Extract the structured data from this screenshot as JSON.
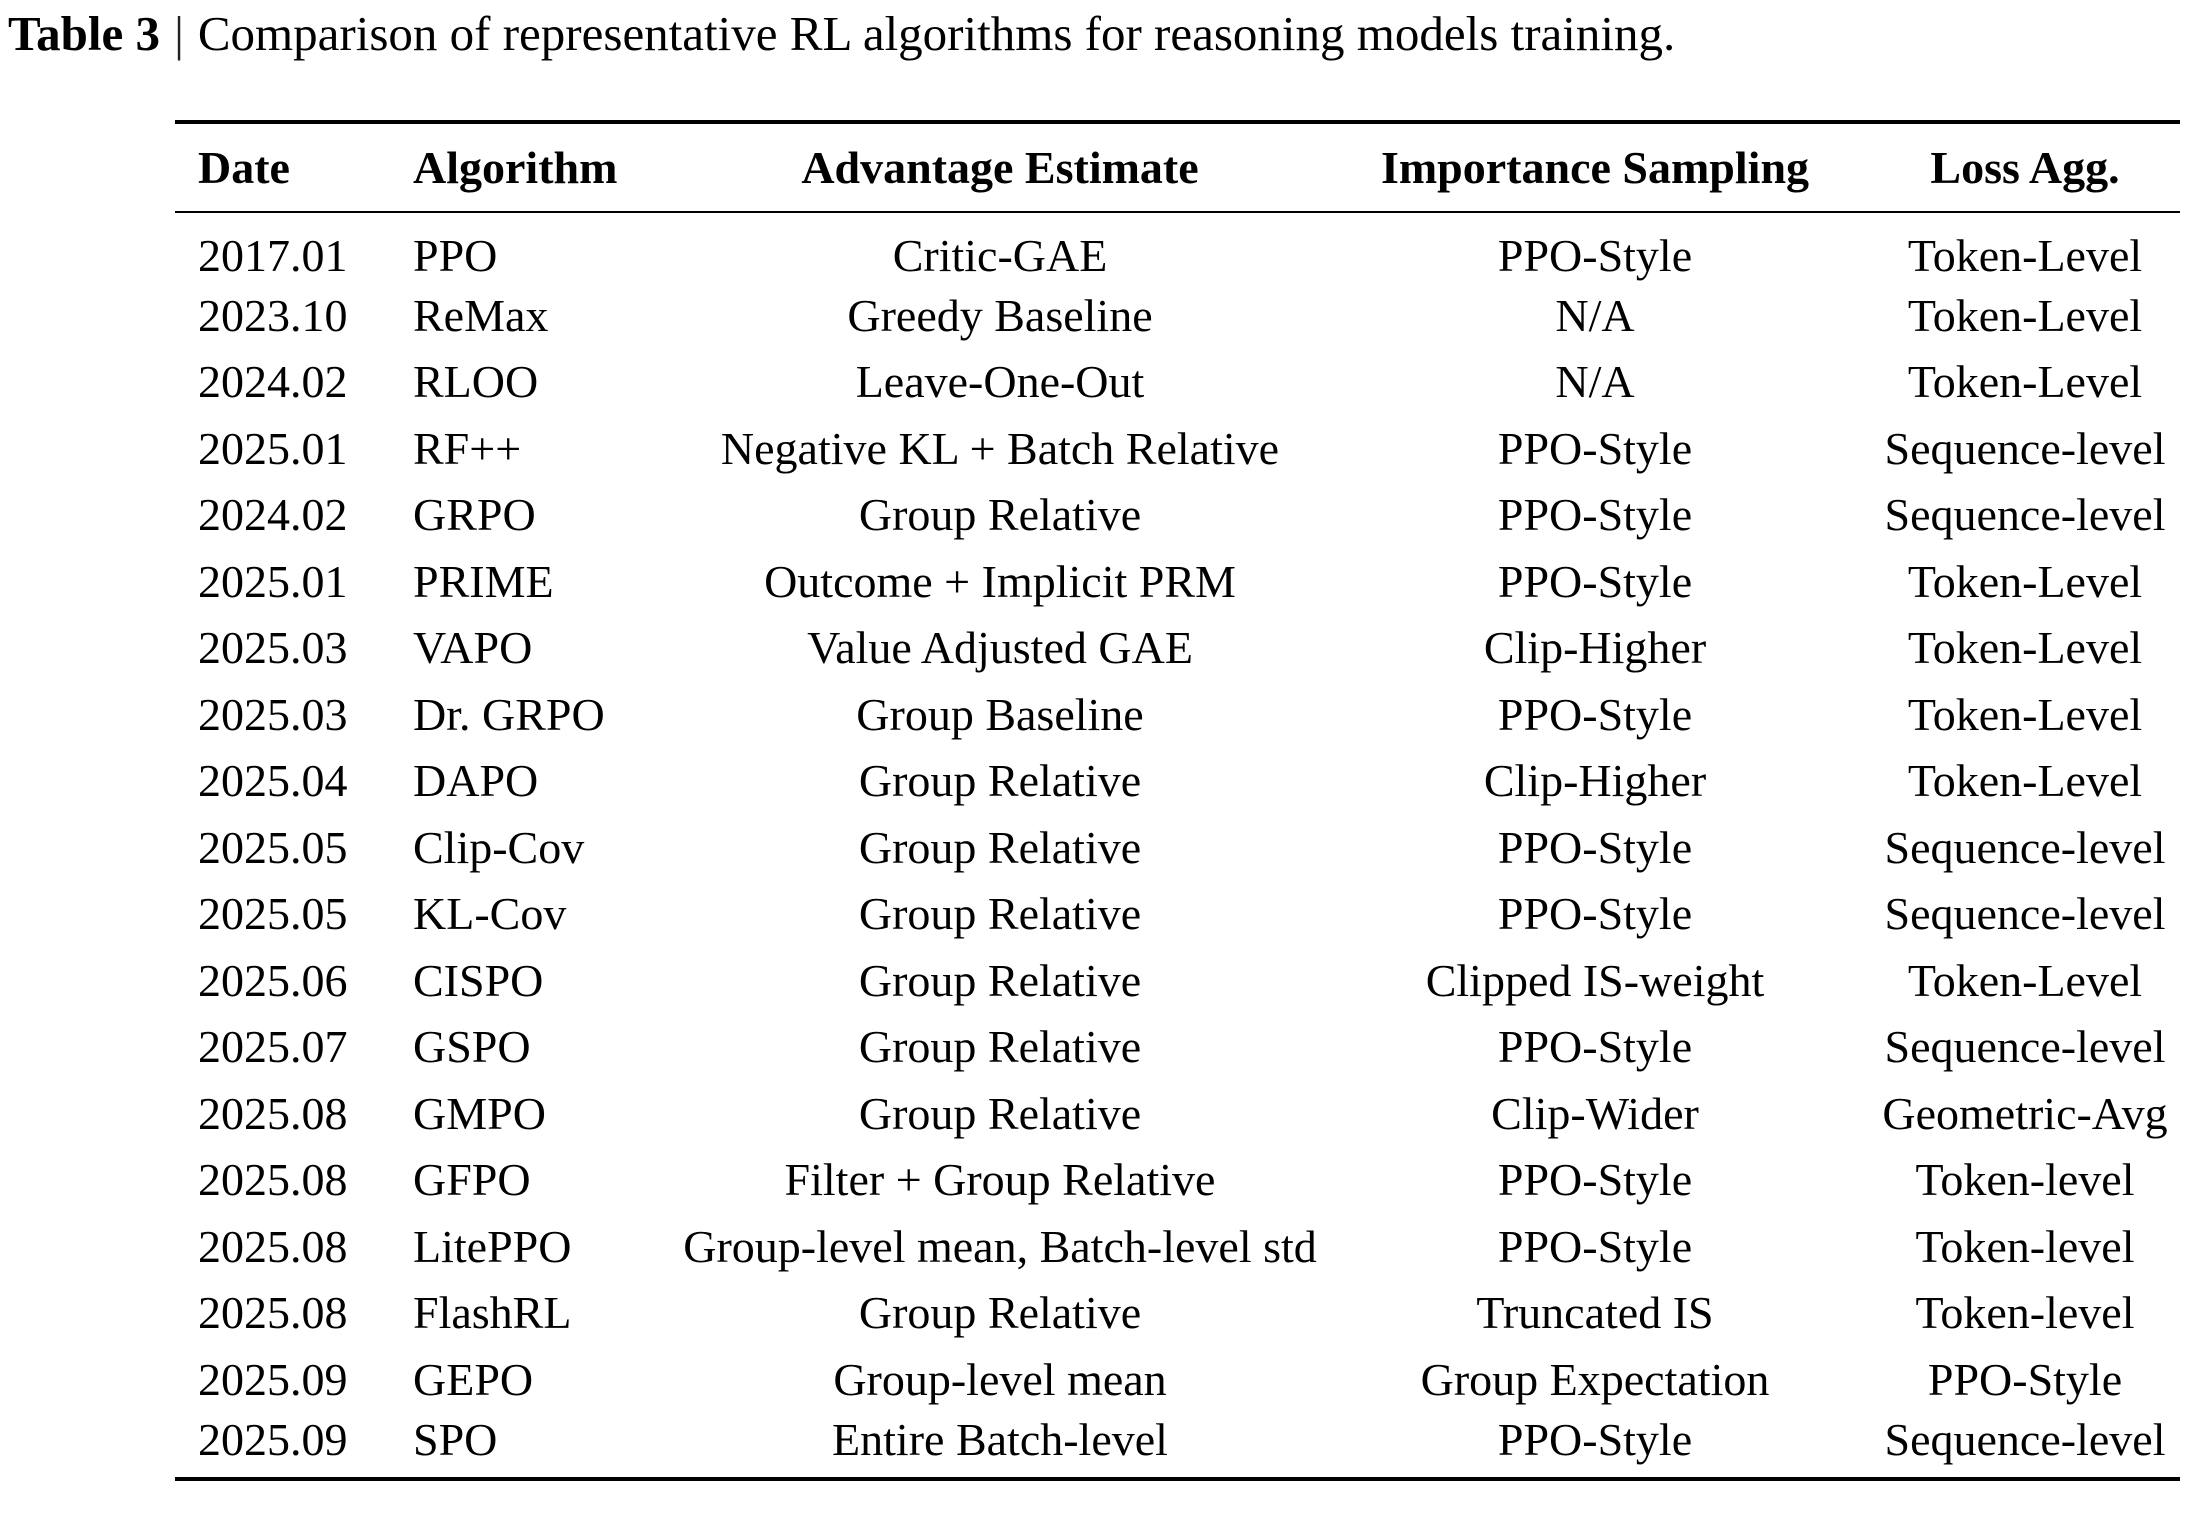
{
  "title": {
    "label": "Table 3",
    "separator": "|",
    "caption": "Comparison of representative RL algorithms for reasoning models training."
  },
  "table": {
    "columns": [
      {
        "label": "Date",
        "align": "left"
      },
      {
        "label": "Algorithm",
        "align": "left"
      },
      {
        "label": "Advantage Estimate",
        "align": "center"
      },
      {
        "label": "Importance Sampling",
        "align": "center"
      },
      {
        "label": "Loss Agg.",
        "align": "center"
      }
    ],
    "rows": [
      [
        "2017.01",
        "PPO",
        "Critic-GAE",
        "PPO-Style",
        "Token-Level"
      ],
      [
        "2023.10",
        "ReMax",
        "Greedy Baseline",
        "N/A",
        "Token-Level"
      ],
      [
        "2024.02",
        "RLOO",
        "Leave-One-Out",
        "N/A",
        "Token-Level"
      ],
      [
        "2025.01",
        "RF++",
        "Negative KL + Batch Relative",
        "PPO-Style",
        "Sequence-level"
      ],
      [
        "2024.02",
        "GRPO",
        "Group Relative",
        "PPO-Style",
        "Sequence-level"
      ],
      [
        "2025.01",
        "PRIME",
        "Outcome + Implicit PRM",
        "PPO-Style",
        "Token-Level"
      ],
      [
        "2025.03",
        "VAPO",
        "Value Adjusted GAE",
        "Clip-Higher",
        "Token-Level"
      ],
      [
        "2025.03",
        "Dr. GRPO",
        "Group Baseline",
        "PPO-Style",
        "Token-Level"
      ],
      [
        "2025.04",
        "DAPO",
        "Group Relative",
        "Clip-Higher",
        "Token-Level"
      ],
      [
        "2025.05",
        "Clip-Cov",
        "Group Relative",
        "PPO-Style",
        "Sequence-level"
      ],
      [
        "2025.05",
        "KL-Cov",
        "Group Relative",
        "PPO-Style",
        "Sequence-level"
      ],
      [
        "2025.06",
        "CISPO",
        "Group Relative",
        "Clipped IS-weight",
        "Token-Level"
      ],
      [
        "2025.07",
        "GSPO",
        "Group Relative",
        "PPO-Style",
        "Sequence-level"
      ],
      [
        "2025.08",
        "GMPO",
        "Group Relative",
        "Clip-Wider",
        "Geometric-Avg"
      ],
      [
        "2025.08",
        "GFPO",
        "Filter + Group Relative",
        "PPO-Style",
        "Token-level"
      ],
      [
        "2025.08",
        "LitePPO",
        "Group-level mean, Batch-level std",
        "PPO-Style",
        "Token-level"
      ],
      [
        "2025.08",
        "FlashRL",
        "Group Relative",
        "Truncated IS",
        "Token-level"
      ],
      [
        "2025.09",
        "GEPO",
        "Group-level mean",
        "Group Expectation",
        "PPO-Style"
      ],
      [
        "2025.09",
        "SPO",
        "Entire Batch-level",
        "PPO-Style",
        "Sequence-level"
      ]
    ]
  },
  "colors": {
    "text": "#000000",
    "background": "#ffffff",
    "rule": "#000000"
  }
}
